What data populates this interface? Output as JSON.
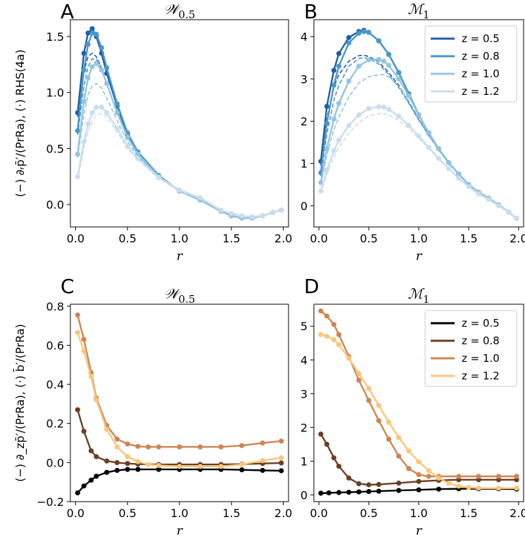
{
  "chart_data": [
    {
      "id": "A",
      "letter": "A",
      "title": "𝒲",
      "title_sub": "0.5",
      "type": "line",
      "xlabel": "r",
      "ylabel": "(−) ∂ᵣp̄′/(PrRa), (·) RHS(4a)",
      "xlim": [
        -0.05,
        2.05
      ],
      "ylim": [
        -0.2,
        1.65
      ],
      "xticks": [
        "0.0",
        "0.5",
        "1.0",
        "1.5",
        "2.0"
      ],
      "xtick_values": [
        0,
        0.5,
        1,
        1.5,
        2
      ],
      "yticks": [
        "0.0",
        "0.5",
        "1.0",
        "1.5"
      ],
      "ytick_values": [
        0,
        0.5,
        1,
        1.5
      ],
      "legend": false,
      "series": [
        {
          "name": "z = 0.5",
          "color": "#1f5fa8",
          "x": [
            0.02,
            0.08,
            0.12,
            0.16,
            0.2,
            0.25,
            0.3,
            0.4,
            0.5,
            0.6,
            0.8,
            1.0,
            1.2,
            1.4,
            1.5,
            1.6,
            1.7,
            1.8,
            1.9,
            1.98
          ],
          "y": [
            0.82,
            1.35,
            1.53,
            1.57,
            1.5,
            1.35,
            1.17,
            0.88,
            0.62,
            0.45,
            0.25,
            0.12,
            0.04,
            -0.06,
            -0.1,
            -0.12,
            -0.12,
            -0.1,
            -0.07,
            -0.05
          ],
          "dash_y": [
            0.78,
            1.18,
            1.32,
            1.35,
            1.32,
            1.22,
            1.08,
            0.82,
            0.6,
            0.44,
            0.25,
            0.12,
            0.04,
            -0.06,
            -0.1,
            -0.12,
            -0.12,
            -0.1,
            -0.07,
            -0.05
          ]
        },
        {
          "name": "z = 0.8",
          "color": "#4a98c9",
          "x": [
            0.02,
            0.08,
            0.12,
            0.16,
            0.2,
            0.25,
            0.3,
            0.4,
            0.5,
            0.6,
            0.8,
            1.0,
            1.2,
            1.4,
            1.5,
            1.6,
            1.7,
            1.8,
            1.9,
            1.98
          ],
          "y": [
            0.66,
            1.2,
            1.43,
            1.53,
            1.52,
            1.4,
            1.22,
            0.9,
            0.64,
            0.47,
            0.26,
            0.12,
            0.04,
            -0.06,
            -0.1,
            -0.12,
            -0.12,
            -0.1,
            -0.07,
            -0.05
          ],
          "dash_y": [
            0.62,
            1.05,
            1.23,
            1.3,
            1.3,
            1.22,
            1.08,
            0.83,
            0.6,
            0.45,
            0.25,
            0.12,
            0.04,
            -0.06,
            -0.1,
            -0.12,
            -0.12,
            -0.1,
            -0.07,
            -0.05
          ]
        },
        {
          "name": "z = 1.0",
          "color": "#94c4df",
          "x": [
            0.02,
            0.08,
            0.12,
            0.16,
            0.2,
            0.25,
            0.3,
            0.4,
            0.5,
            0.6,
            0.8,
            1.0,
            1.2,
            1.4,
            1.5,
            1.6,
            1.7,
            1.8,
            1.9,
            1.98
          ],
          "y": [
            0.45,
            0.92,
            1.13,
            1.23,
            1.26,
            1.2,
            1.08,
            0.82,
            0.6,
            0.45,
            0.25,
            0.12,
            0.04,
            -0.06,
            -0.1,
            -0.12,
            -0.12,
            -0.1,
            -0.07,
            -0.05
          ],
          "dash_y": [
            0.42,
            0.8,
            0.98,
            1.06,
            1.08,
            1.04,
            0.95,
            0.75,
            0.56,
            0.43,
            0.24,
            0.12,
            0.04,
            -0.06,
            -0.1,
            -0.12,
            -0.12,
            -0.1,
            -0.07,
            -0.05
          ]
        },
        {
          "name": "z = 1.2",
          "color": "#c9ddf0",
          "x": [
            0.02,
            0.08,
            0.12,
            0.16,
            0.2,
            0.25,
            0.3,
            0.4,
            0.5,
            0.6,
            0.8,
            1.0,
            1.2,
            1.4,
            1.5,
            1.6,
            1.7,
            1.8,
            1.9,
            1.98
          ],
          "y": [
            0.25,
            0.56,
            0.72,
            0.82,
            0.87,
            0.87,
            0.82,
            0.68,
            0.52,
            0.41,
            0.24,
            0.13,
            0.06,
            -0.05,
            -0.08,
            -0.1,
            -0.11,
            -0.1,
            -0.07,
            -0.05
          ],
          "dash_y": [
            0.22,
            0.5,
            0.65,
            0.75,
            0.8,
            0.81,
            0.78,
            0.65,
            0.5,
            0.4,
            0.23,
            0.12,
            0.05,
            -0.05,
            -0.08,
            -0.1,
            -0.11,
            -0.1,
            -0.07,
            -0.05
          ]
        }
      ]
    },
    {
      "id": "B",
      "letter": "B",
      "title": "ℳ",
      "title_sub": "1",
      "type": "line",
      "xlabel": "r",
      "ylabel": "",
      "xlim": [
        -0.05,
        2.05
      ],
      "ylim": [
        -0.5,
        4.4
      ],
      "xticks": [
        "0.0",
        "0.5",
        "1.0",
        "1.5",
        "2.0"
      ],
      "xtick_values": [
        0,
        0.5,
        1,
        1.5,
        2
      ],
      "yticks": [
        "0",
        "1",
        "2",
        "3",
        "4"
      ],
      "ytick_values": [
        0,
        1,
        2,
        3,
        4
      ],
      "legend": true,
      "legend_position": "top-right",
      "series": [
        {
          "name": "z = 0.5",
          "color": "#1f5fa8",
          "x": [
            0.02,
            0.08,
            0.15,
            0.2,
            0.3,
            0.4,
            0.45,
            0.5,
            0.6,
            0.7,
            0.8,
            0.9,
            1.0,
            1.1,
            1.2,
            1.3,
            1.4,
            1.5,
            1.6,
            1.7,
            1.8,
            1.9,
            1.98
          ],
          "y": [
            1.05,
            2.35,
            3.2,
            3.6,
            3.98,
            4.12,
            4.15,
            4.1,
            3.9,
            3.58,
            3.15,
            2.65,
            2.15,
            1.72,
            1.35,
            1.02,
            0.75,
            0.5,
            0.32,
            0.18,
            0.02,
            -0.15,
            -0.3
          ],
          "dash_y": [
            0.95,
            2.05,
            2.8,
            3.1,
            3.42,
            3.55,
            3.56,
            3.53,
            3.4,
            3.15,
            2.85,
            2.45,
            2.05,
            1.68,
            1.33,
            1.01,
            0.74,
            0.5,
            0.32,
            0.18,
            0.02,
            -0.15,
            -0.3
          ]
        },
        {
          "name": "z = 0.8",
          "color": "#4a98c9",
          "x": [
            0.02,
            0.08,
            0.15,
            0.2,
            0.3,
            0.4,
            0.45,
            0.5,
            0.6,
            0.7,
            0.8,
            0.9,
            1.0,
            1.1,
            1.2,
            1.3,
            1.4,
            1.5,
            1.6,
            1.7,
            1.8,
            1.9,
            1.98
          ],
          "y": [
            0.78,
            1.95,
            2.85,
            3.3,
            3.85,
            4.08,
            4.12,
            4.1,
            3.9,
            3.58,
            3.15,
            2.65,
            2.15,
            1.72,
            1.35,
            1.02,
            0.75,
            0.5,
            0.32,
            0.18,
            0.02,
            -0.15,
            -0.3
          ],
          "dash_y": [
            0.7,
            1.7,
            2.5,
            2.85,
            3.3,
            3.48,
            3.5,
            3.48,
            3.35,
            3.1,
            2.8,
            2.42,
            2.03,
            1.67,
            1.32,
            1.0,
            0.74,
            0.5,
            0.32,
            0.18,
            0.02,
            -0.15,
            -0.3
          ]
        },
        {
          "name": "z = 1.0",
          "color": "#94c4df",
          "x": [
            0.02,
            0.08,
            0.15,
            0.2,
            0.3,
            0.4,
            0.5,
            0.6,
            0.65,
            0.7,
            0.8,
            0.9,
            1.0,
            1.1,
            1.2,
            1.3,
            1.4,
            1.5,
            1.6,
            1.7,
            1.8,
            1.9,
            1.98
          ],
          "y": [
            0.55,
            1.35,
            2.05,
            2.42,
            2.95,
            3.3,
            3.45,
            3.46,
            3.42,
            3.32,
            3.0,
            2.6,
            2.15,
            1.73,
            1.35,
            1.02,
            0.75,
            0.5,
            0.32,
            0.18,
            0.02,
            -0.15,
            -0.3
          ],
          "dash_y": [
            0.5,
            1.2,
            1.8,
            2.1,
            2.58,
            2.9,
            3.05,
            3.1,
            3.1,
            3.05,
            2.82,
            2.48,
            2.08,
            1.7,
            1.33,
            1.01,
            0.74,
            0.5,
            0.32,
            0.18,
            0.02,
            -0.15,
            -0.3
          ]
        },
        {
          "name": "z = 1.2",
          "color": "#c9ddf0",
          "x": [
            0.02,
            0.08,
            0.15,
            0.2,
            0.3,
            0.4,
            0.5,
            0.6,
            0.65,
            0.7,
            0.8,
            0.9,
            1.0,
            1.1,
            1.2,
            1.3,
            1.4,
            1.5,
            1.6,
            1.7,
            1.8,
            1.9,
            1.98
          ],
          "y": [
            0.35,
            0.85,
            1.3,
            1.55,
            1.9,
            2.15,
            2.3,
            2.34,
            2.33,
            2.28,
            2.12,
            1.9,
            1.65,
            1.38,
            1.12,
            0.88,
            0.65,
            0.45,
            0.28,
            0.15,
            0.0,
            -0.15,
            -0.3
          ],
          "dash_y": [
            0.3,
            0.75,
            1.15,
            1.38,
            1.72,
            1.97,
            2.12,
            2.18,
            2.18,
            2.15,
            2.02,
            1.83,
            1.6,
            1.35,
            1.1,
            0.87,
            0.65,
            0.45,
            0.28,
            0.15,
            0.0,
            -0.15,
            -0.3
          ]
        }
      ]
    },
    {
      "id": "C",
      "letter": "C",
      "title": "𝒲",
      "title_sub": "0.5",
      "type": "line",
      "xlabel": "r",
      "ylabel": "(−) ∂_zp̄′/(PrRa), (·) b̄′/(PrRa)",
      "xlim": [
        -0.05,
        2.05
      ],
      "ylim": [
        -0.2,
        0.81
      ],
      "xticks": [
        "0.0",
        "0.5",
        "1.0",
        "1.5",
        "2.0"
      ],
      "xtick_values": [
        0,
        0.5,
        1,
        1.5,
        2
      ],
      "yticks": [
        "−0.2",
        "0.0",
        "0.2",
        "0.4",
        "0.6",
        "0.8"
      ],
      "ytick_values": [
        -0.2,
        0,
        0.2,
        0.4,
        0.6,
        0.8
      ],
      "legend": false,
      "series": [
        {
          "name": "z = 0.5",
          "color": "#000000",
          "x": [
            0.02,
            0.08,
            0.15,
            0.2,
            0.3,
            0.4,
            0.5,
            0.6,
            0.8,
            1.0,
            1.2,
            1.4,
            1.6,
            1.8,
            1.98
          ],
          "y": [
            -0.155,
            -0.12,
            -0.09,
            -0.07,
            -0.05,
            -0.04,
            -0.035,
            -0.035,
            -0.035,
            -0.035,
            -0.035,
            -0.035,
            -0.037,
            -0.04,
            -0.042
          ]
        },
        {
          "name": "z = 0.8",
          "color": "#6b3f22",
          "x": [
            0.02,
            0.08,
            0.15,
            0.2,
            0.3,
            0.4,
            0.5,
            0.6,
            0.8,
            1.0,
            1.2,
            1.4,
            1.6,
            1.8,
            1.98
          ],
          "y": [
            0.27,
            0.16,
            0.06,
            0.03,
            0.008,
            0.0,
            -0.005,
            -0.008,
            -0.01,
            -0.01,
            -0.01,
            -0.01,
            -0.008,
            -0.005,
            -0.002
          ]
        },
        {
          "name": "z = 1.0",
          "color": "#cf8452",
          "x": [
            0.02,
            0.08,
            0.15,
            0.2,
            0.3,
            0.4,
            0.5,
            0.6,
            0.7,
            0.8,
            1.0,
            1.2,
            1.4,
            1.6,
            1.8,
            1.98
          ],
          "y": [
            0.755,
            0.63,
            0.46,
            0.33,
            0.19,
            0.12,
            0.095,
            0.083,
            0.08,
            0.08,
            0.08,
            0.08,
            0.08,
            0.087,
            0.1,
            0.11
          ]
        },
        {
          "name": "z = 1.2",
          "color": "#fbc67a",
          "x": [
            0.02,
            0.08,
            0.15,
            0.2,
            0.3,
            0.4,
            0.5,
            0.6,
            0.7,
            0.8,
            1.0,
            1.2,
            1.4,
            1.6,
            1.8,
            1.98
          ],
          "y": [
            0.665,
            0.57,
            0.44,
            0.32,
            0.17,
            0.08,
            0.03,
            0.005,
            -0.01,
            -0.015,
            -0.02,
            -0.02,
            -0.02,
            -0.01,
            0.01,
            0.025
          ]
        }
      ]
    },
    {
      "id": "D",
      "letter": "D",
      "title": "ℳ",
      "title_sub": "1",
      "type": "line",
      "xlabel": "r",
      "ylabel": "",
      "xlim": [
        -0.05,
        2.05
      ],
      "ylim": [
        -0.2,
        5.65
      ],
      "xticks": [
        "0.0",
        "0.5",
        "1.0",
        "1.5",
        "2.0"
      ],
      "xtick_values": [
        0,
        0.5,
        1,
        1.5,
        2
      ],
      "yticks": [
        "0",
        "1",
        "2",
        "3",
        "4",
        "5"
      ],
      "ytick_values": [
        0,
        1,
        2,
        3,
        4,
        5
      ],
      "legend": true,
      "legend_position": "top-right",
      "series": [
        {
          "name": "z = 0.5",
          "color": "#000000",
          "x": [
            0.02,
            0.1,
            0.2,
            0.3,
            0.4,
            0.5,
            0.6,
            0.8,
            1.0,
            1.2,
            1.4,
            1.6,
            1.8,
            1.98
          ],
          "y": [
            0.05,
            0.06,
            0.07,
            0.08,
            0.09,
            0.1,
            0.11,
            0.13,
            0.15,
            0.17,
            0.18,
            0.18,
            0.18,
            0.17
          ]
        },
        {
          "name": "z = 0.8",
          "color": "#6b3f22",
          "x": [
            0.02,
            0.08,
            0.15,
            0.2,
            0.3,
            0.4,
            0.5,
            0.6,
            0.8,
            1.0,
            1.2,
            1.4,
            1.6,
            1.8,
            1.98
          ],
          "y": [
            1.8,
            1.5,
            1.1,
            0.85,
            0.5,
            0.33,
            0.3,
            0.31,
            0.35,
            0.4,
            0.43,
            0.45,
            0.45,
            0.45,
            0.45
          ]
        },
        {
          "name": "z = 1.0",
          "color": "#cf8452",
          "x": [
            0.02,
            0.08,
            0.15,
            0.2,
            0.3,
            0.4,
            0.5,
            0.6,
            0.7,
            0.8,
            0.9,
            1.0,
            1.1,
            1.2,
            1.4,
            1.6,
            1.8,
            1.98
          ],
          "y": [
            5.45,
            5.3,
            5.05,
            4.75,
            4.1,
            3.4,
            2.8,
            2.2,
            1.65,
            1.15,
            0.78,
            0.6,
            0.55,
            0.55,
            0.55,
            0.55,
            0.55,
            0.55
          ]
        },
        {
          "name": "z = 1.2",
          "color": "#fbc67a",
          "x": [
            0.02,
            0.08,
            0.15,
            0.2,
            0.3,
            0.4,
            0.5,
            0.6,
            0.7,
            0.8,
            0.9,
            1.0,
            1.1,
            1.2,
            1.3,
            1.4,
            1.5,
            1.6,
            1.8,
            1.98
          ],
          "y": [
            4.75,
            4.7,
            4.6,
            4.45,
            4.05,
            3.6,
            3.15,
            2.65,
            2.15,
            1.7,
            1.3,
            0.98,
            0.72,
            0.5,
            0.35,
            0.26,
            0.22,
            0.2,
            0.2,
            0.2
          ]
        }
      ]
    }
  ]
}
